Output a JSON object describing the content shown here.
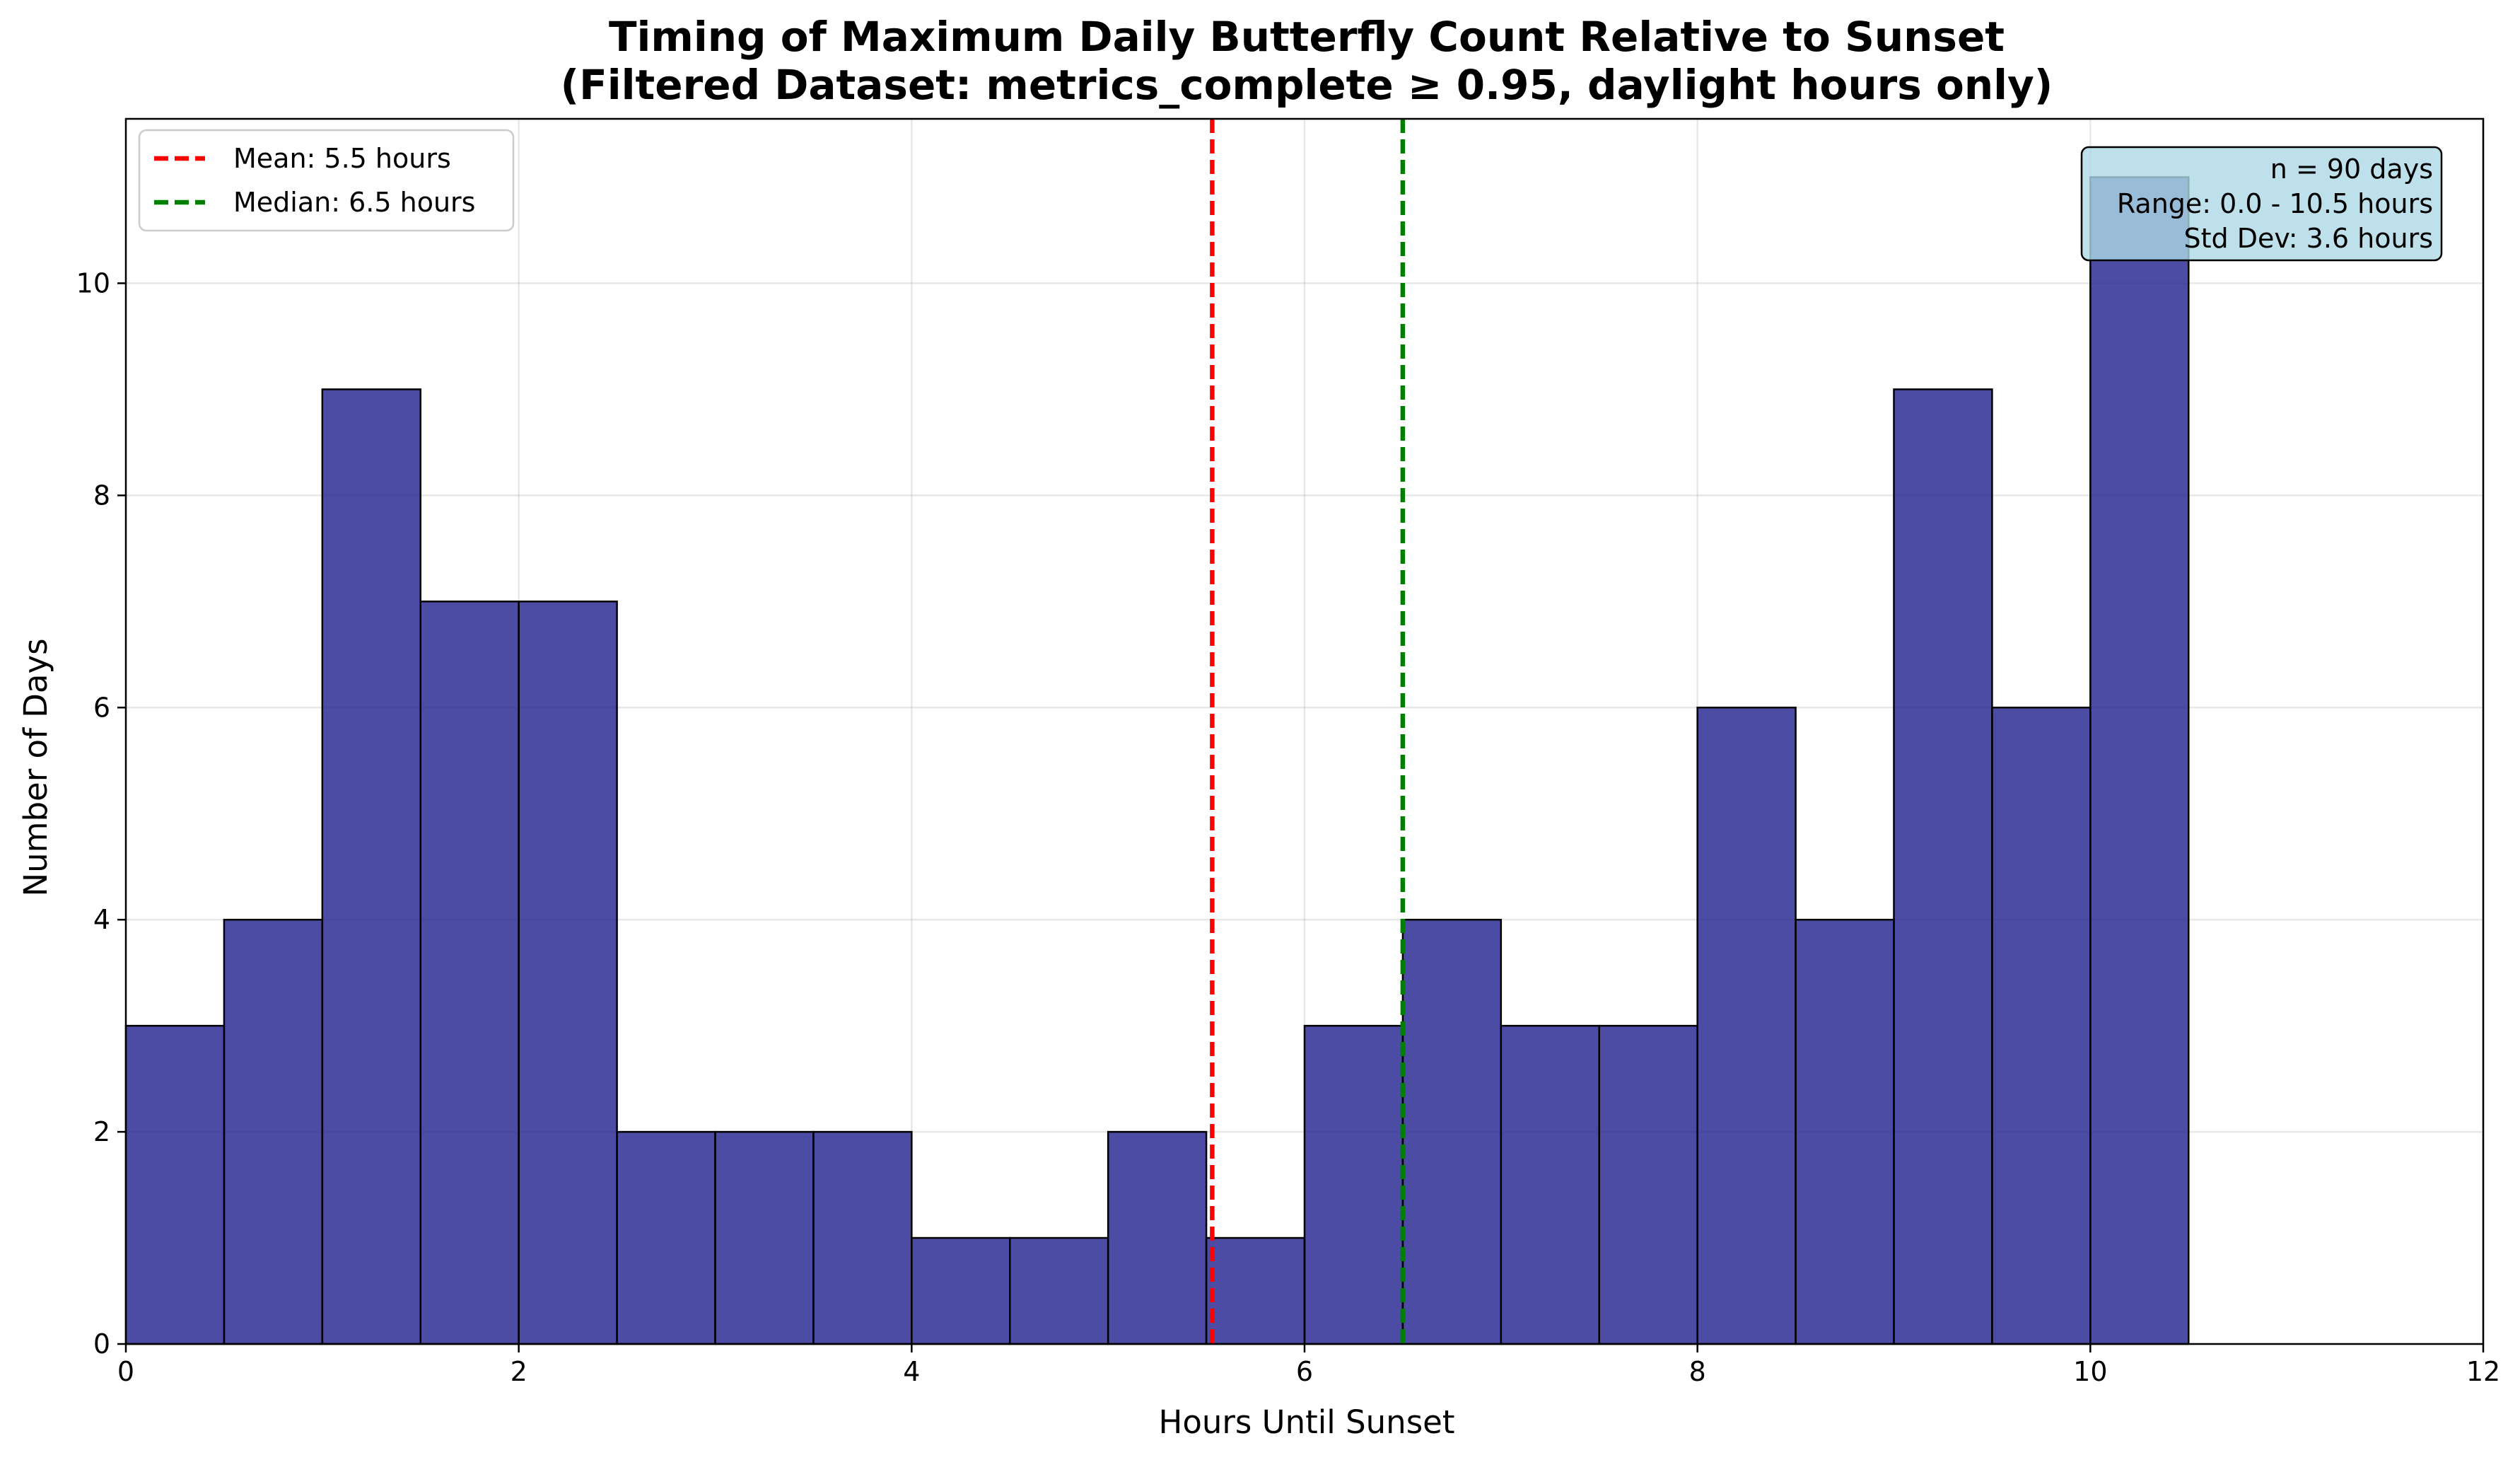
{
  "chart_data": {
    "type": "bar",
    "title_lines": [
      "Timing of Maximum Daily Butterfly Count Relative to Sunset",
      "(Filtered Dataset: metrics_complete ≥ 0.95, daylight hours only)"
    ],
    "xlabel": "Hours Until Sunset",
    "ylabel": "Number of Days",
    "xlim": [
      0,
      12
    ],
    "ylim": [
      0,
      11.55
    ],
    "xticks": [
      0,
      2,
      4,
      6,
      8,
      10,
      12
    ],
    "yticks": [
      0,
      2,
      4,
      6,
      8,
      10
    ],
    "grid": true,
    "bin_width": 0.5,
    "bin_edges_start": [
      0,
      0.5,
      1,
      1.5,
      2,
      2.5,
      3,
      3.5,
      4,
      4.5,
      5,
      5.5,
      6,
      6.5,
      7,
      7.5,
      8,
      8.5,
      9,
      9.5,
      10
    ],
    "values": [
      3,
      4,
      9,
      7,
      7,
      2,
      2,
      2,
      1,
      1,
      2,
      1,
      3,
      4,
      3,
      3,
      6,
      4,
      9,
      6,
      11
    ],
    "bar_color": "#1a1a8c",
    "bar_edge_color": "#000000",
    "mean": 5.53,
    "median": 6.5,
    "mean_color": "#ff0000",
    "median_color": "#008000",
    "legend": {
      "placement": "top-left",
      "mean_label": "Mean: 5.5 hours",
      "median_label": "Median: 6.5 hours"
    },
    "stats_box": {
      "placement": "top-right",
      "background": "#add8e6",
      "lines": [
        "n = 90 days",
        "Range: 0.0 - 10.5 hours",
        "Std Dev: 3.6 hours"
      ]
    }
  }
}
